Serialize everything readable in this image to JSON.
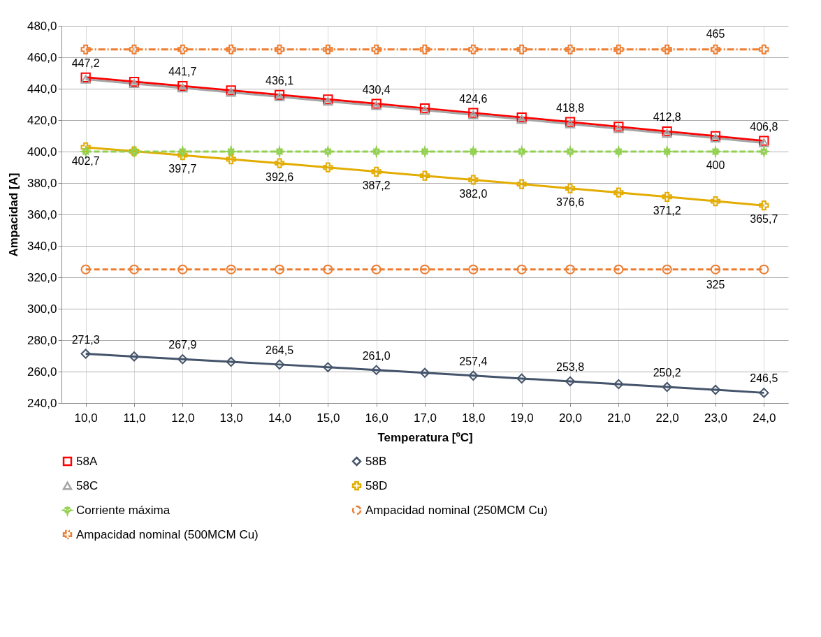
{
  "chart_data": {
    "type": "line",
    "xlabel": "Temperatura [ºC]",
    "ylabel": "Ampacidad [A]",
    "categories": [
      "10,0",
      "11,0",
      "12,0",
      "13,0",
      "14,0",
      "15,0",
      "16,0",
      "17,0",
      "18,0",
      "19,0",
      "20,0",
      "21,0",
      "22,0",
      "23,0",
      "24,0"
    ],
    "ylim": [
      240,
      480
    ],
    "yticks": [
      {
        "value": 240,
        "label": "240,0"
      },
      {
        "value": 260,
        "label": "260,0"
      },
      {
        "value": 280,
        "label": "280,0"
      },
      {
        "value": 300,
        "label": "300,0"
      },
      {
        "value": 320,
        "label": "320,0"
      },
      {
        "value": 340,
        "label": "340,0"
      },
      {
        "value": 360,
        "label": "360,0"
      },
      {
        "value": 380,
        "label": "380,0"
      },
      {
        "value": 400,
        "label": "400,0"
      },
      {
        "value": 420,
        "label": "420,0"
      },
      {
        "value": 440,
        "label": "440,0"
      },
      {
        "value": 460,
        "label": "460,0"
      },
      {
        "value": 480,
        "label": "480,0"
      }
    ],
    "grid": true,
    "legend": "bottom",
    "series": [
      {
        "name": "58A",
        "color": "#ff0000",
        "marker": "square",
        "line_style": "solid",
        "values": [
          447.2,
          444.4,
          441.7,
          438.9,
          436.1,
          433.2,
          430.4,
          427.5,
          424.6,
          421.7,
          418.8,
          415.8,
          412.8,
          409.8,
          406.8
        ],
        "value_labels": [
          "447,2",
          null,
          "441,7",
          null,
          "436,1",
          null,
          "430,4",
          null,
          "424,6",
          null,
          "418,8",
          null,
          "412,8",
          null,
          "406,8"
        ]
      },
      {
        "name": "58B",
        "color": "#44546a",
        "marker": "diamond",
        "line_style": "solid",
        "values": [
          271.3,
          269.6,
          267.9,
          266.2,
          264.5,
          262.8,
          261.0,
          259.2,
          257.4,
          255.6,
          253.8,
          252.0,
          250.2,
          248.4,
          246.5
        ],
        "value_labels": [
          "271,3",
          null,
          "267,9",
          null,
          "264,5",
          null,
          "261,0",
          null,
          "257,4",
          null,
          "253,8",
          null,
          "250,2",
          null,
          "246,5"
        ]
      },
      {
        "name": "58C",
        "color": "#a5a5a5",
        "marker": "triangle",
        "line_style": "solid",
        "values": [
          446.0,
          443.2,
          440.5,
          437.7,
          434.9,
          432.0,
          429.2,
          426.3,
          423.4,
          420.5,
          417.6,
          414.6,
          411.6,
          408.6,
          405.6
        ]
      },
      {
        "name": "58D",
        "color": "#e3ac00",
        "marker": "cross",
        "line_style": "solid",
        "values": [
          402.7,
          400.2,
          397.7,
          395.1,
          392.6,
          389.9,
          387.2,
          384.6,
          382.0,
          379.3,
          376.6,
          373.9,
          371.2,
          368.4,
          365.7
        ],
        "value_labels": [
          "402,7",
          null,
          "397,7",
          null,
          "392,6",
          null,
          "387,2",
          null,
          "382,0",
          null,
          "376,6",
          null,
          "371,2",
          null,
          "365,7"
        ]
      },
      {
        "name": "Corriente máxima",
        "color": "#92d050",
        "marker": "star",
        "line_style": "dashed",
        "values": [
          400,
          400,
          400,
          400,
          400,
          400,
          400,
          400,
          400,
          400,
          400,
          400,
          400,
          400,
          400
        ],
        "value_labels": [
          null,
          null,
          null,
          null,
          null,
          null,
          null,
          null,
          null,
          null,
          null,
          null,
          null,
          "400",
          null
        ]
      },
      {
        "name": "Ampacidad nominal (250MCM Cu)",
        "color": "#ed7d31",
        "marker": "circle",
        "line_style": "dashed",
        "values": [
          325,
          325,
          325,
          325,
          325,
          325,
          325,
          325,
          325,
          325,
          325,
          325,
          325,
          325,
          325
        ],
        "value_labels": [
          null,
          null,
          null,
          null,
          null,
          null,
          null,
          null,
          null,
          null,
          null,
          null,
          null,
          "325",
          null
        ]
      },
      {
        "name": "Ampacidad nominal (500MCM Cu)",
        "color": "#ed7d31",
        "marker": "cross",
        "line_style": "dotted",
        "values": [
          465,
          465,
          465,
          465,
          465,
          465,
          465,
          465,
          465,
          465,
          465,
          465,
          465,
          465,
          465
        ],
        "value_labels": [
          null,
          null,
          null,
          null,
          null,
          null,
          null,
          null,
          null,
          null,
          null,
          null,
          null,
          "465",
          null
        ]
      }
    ]
  }
}
